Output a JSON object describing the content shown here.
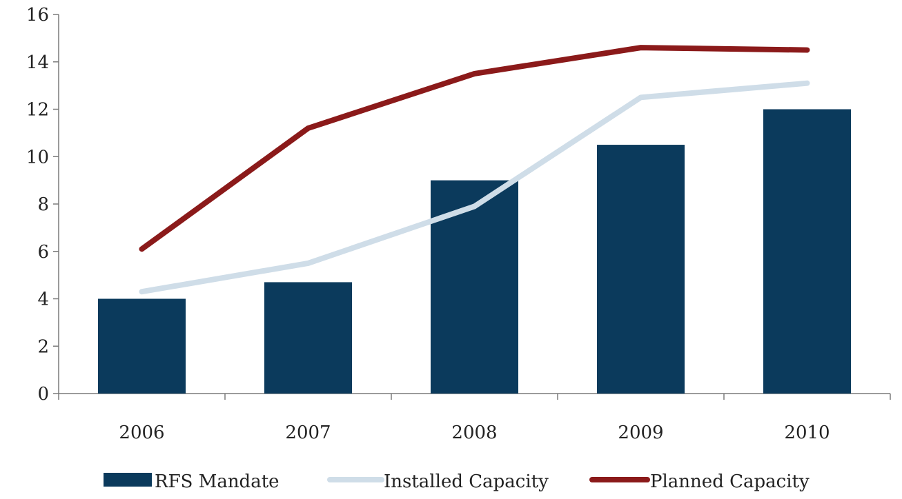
{
  "chart_data": {
    "type": "bar",
    "categories": [
      "2006",
      "2007",
      "2008",
      "2009",
      "2010"
    ],
    "series": [
      {
        "name": "RFS Mandate",
        "kind": "bar",
        "color": "#0b3a5c",
        "values": [
          4.0,
          4.7,
          9.0,
          10.5,
          12.0
        ]
      },
      {
        "name": "Installed Capacity",
        "kind": "line",
        "color": "#cfdde8",
        "values": [
          4.3,
          5.5,
          7.9,
          12.5,
          13.1
        ]
      },
      {
        "name": "Planned Capacity",
        "kind": "line",
        "color": "#8b1a1a",
        "values": [
          6.1,
          11.2,
          13.5,
          14.6,
          14.5
        ]
      }
    ],
    "title": "",
    "xlabel": "",
    "ylabel": "",
    "ylim": [
      0,
      16
    ],
    "yticks": [
      "0",
      "2",
      "4",
      "6",
      "8",
      "10",
      "12",
      "14",
      "16"
    ],
    "grid": false,
    "legend_position": "bottom"
  }
}
